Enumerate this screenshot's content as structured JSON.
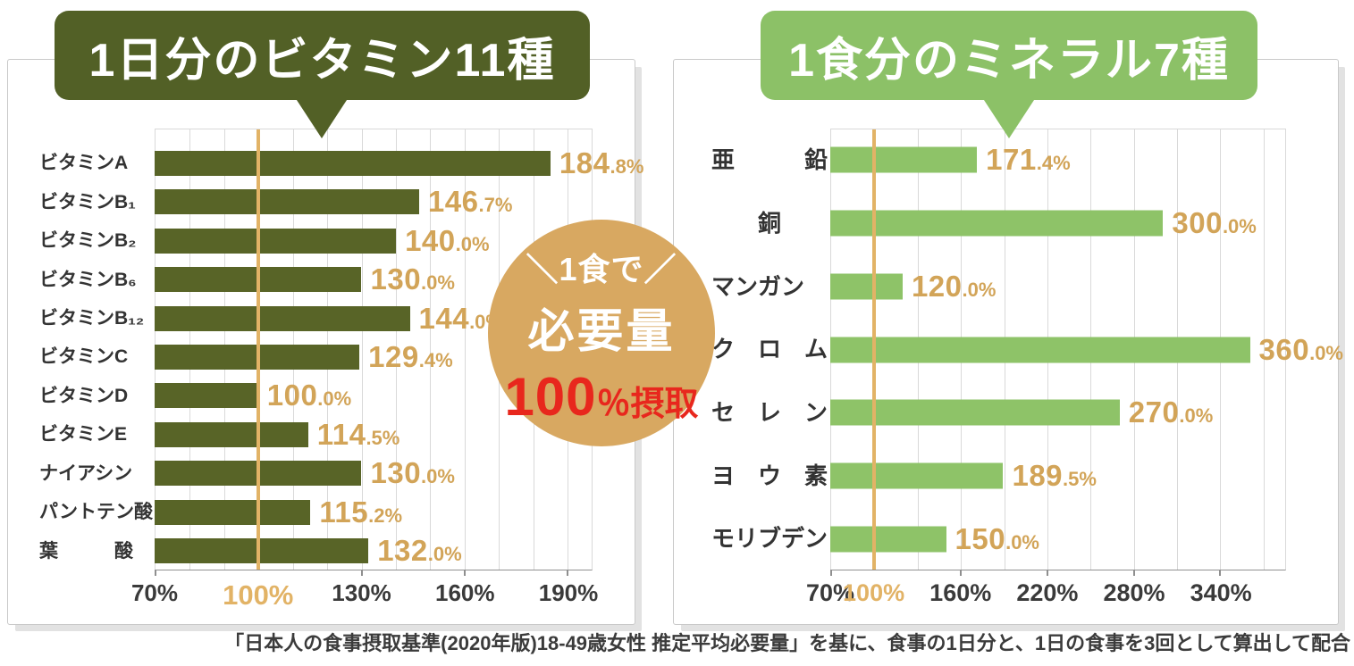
{
  "page": {
    "background": "#ffffff",
    "footnote": "「日本人の食事摂取基準(2020年版)18-49歳女性 推定平均必要量」を基に、食事の1日分と、1日の食事を3回として算出して配合"
  },
  "badge": {
    "line1": "＼1食で／",
    "line2": "必要量",
    "line3_number": "100",
    "line3_suffix": "％摂取",
    "bg_color": "#d8a861",
    "text_color": "#ffffff",
    "number_color": "#e8271d"
  },
  "chart_data": [
    {
      "type": "bar",
      "orientation": "horizontal",
      "title": "1日分のビタミン11種",
      "title_bg": "#526026",
      "bar_color": "#586427",
      "value_label_color": "#d2a458",
      "grid": true,
      "axis": {
        "unit": "%",
        "min": 70,
        "max": 197,
        "grid_step": 10,
        "tick_values": [
          70,
          100,
          130,
          160,
          190
        ],
        "tick_labels": [
          "70%",
          "100%",
          "130%",
          "160%",
          "190%"
        ],
        "highlight_value": 100,
        "highlight_color": "#e2b366"
      },
      "categories": [
        "ビタミンA",
        "ビタミンB₁",
        "ビタミンB₂",
        "ビタミンB₆",
        "ビタミンB₁₂",
        "ビタミンC",
        "ビタミンD",
        "ビタミンE",
        "ナイアシン",
        "パントテン酸",
        "葉　　　酸"
      ],
      "values": [
        184.8,
        146.7,
        140.0,
        130.0,
        144.0,
        129.4,
        100.0,
        114.5,
        130.0,
        115.2,
        132.0
      ],
      "value_labels": [
        "184.8%",
        "146.7%",
        "140.0%",
        "130.0%",
        "144.0%",
        "129.4%",
        "100.0%",
        "114.5%",
        "130.0%",
        "115.2%",
        "132.0%"
      ]
    },
    {
      "type": "bar",
      "orientation": "horizontal",
      "title": "1食分のミネラル7種",
      "title_bg": "#8cc167",
      "bar_color": "#8ec368",
      "value_label_color": "#d2a458",
      "grid": true,
      "axis": {
        "unit": "%",
        "min": 70,
        "max": 385,
        "grid_step": 30,
        "tick_values": [
          70,
          100,
          160,
          220,
          280,
          340
        ],
        "tick_labels": [
          "70%",
          "100%",
          "160%",
          "220%",
          "280%",
          "340%"
        ],
        "highlight_value": 100,
        "highlight_color": "#e2b366"
      },
      "categories": [
        "亜　　　鉛",
        "　　銅",
        "マンガン",
        "ク　ロ　ム",
        "セ　レ　ン",
        "ヨ　ウ　素",
        "モリブデン"
      ],
      "values": [
        171.4,
        300.0,
        120.0,
        360.0,
        270.0,
        189.5,
        150.0
      ],
      "value_labels": [
        "171.4%",
        "300.0%",
        "120.0%",
        "360.0%",
        "270.0%",
        "189.5%",
        "150.0%"
      ]
    }
  ]
}
